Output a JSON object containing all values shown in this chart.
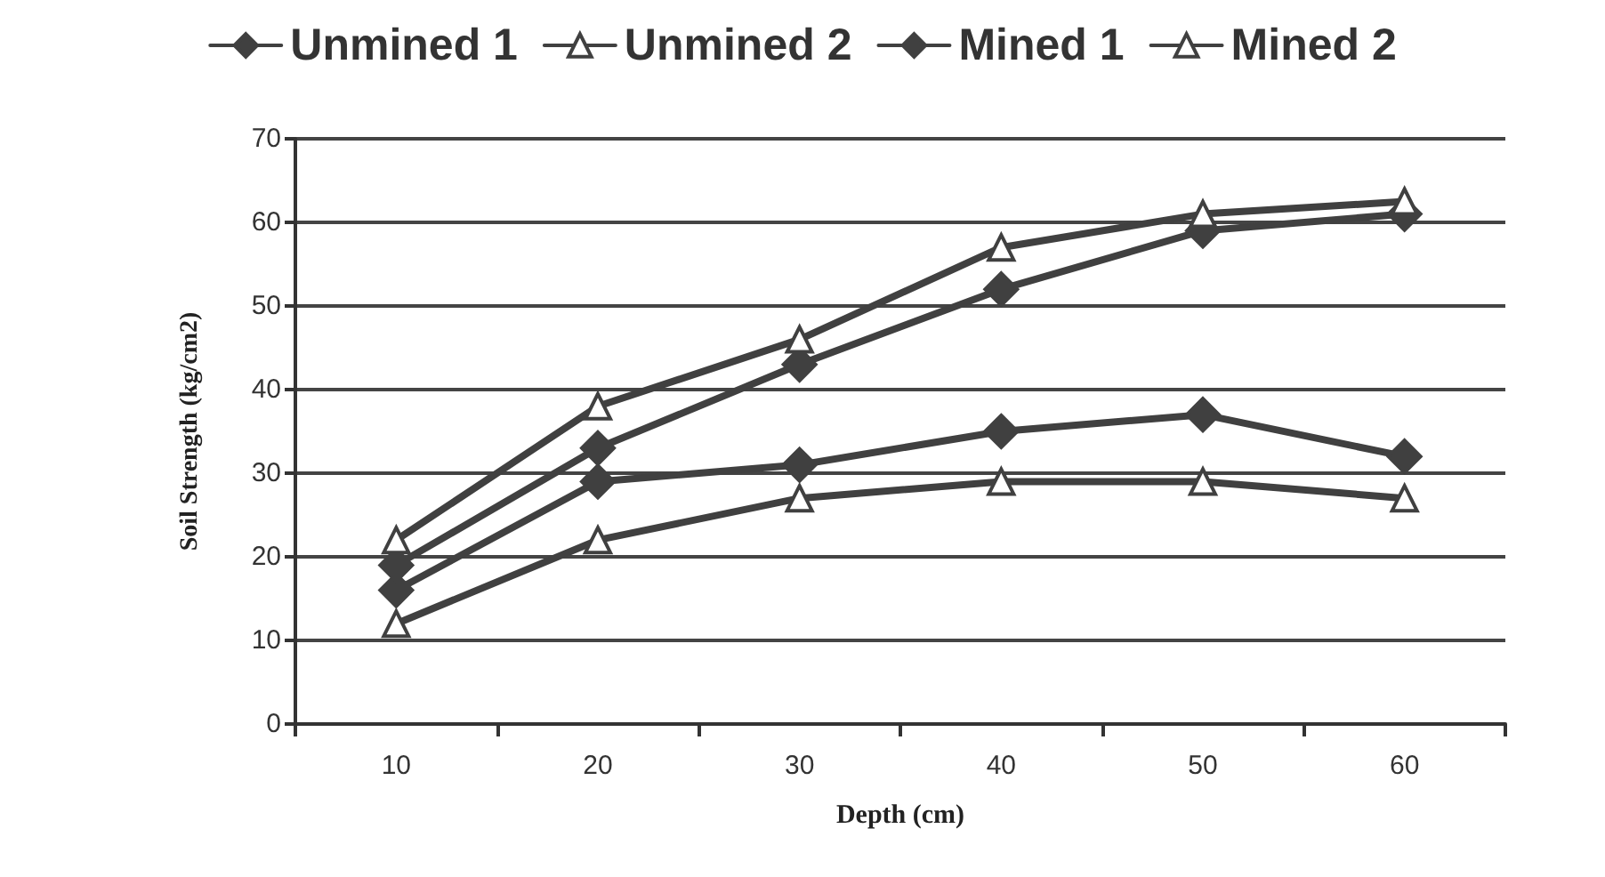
{
  "chart_data": {
    "type": "line",
    "xlabel": "Depth (cm)",
    "ylabel": "Soil Strength (kg/cm2)",
    "categories": [
      "10",
      "20",
      "30",
      "40",
      "50",
      "60"
    ],
    "series": [
      {
        "name": "Unmined 1",
        "color": "#404040",
        "marker": "diamond",
        "values": [
          16,
          29,
          31,
          35,
          37,
          32
        ]
      },
      {
        "name": "Unmined 2",
        "color": "#404040",
        "marker": "triangle",
        "values": [
          12,
          22,
          27,
          29,
          29,
          27
        ]
      },
      {
        "name": "Mined 1",
        "color": "#404040",
        "marker": "diamond",
        "values": [
          19,
          33,
          43,
          52,
          59,
          61
        ]
      },
      {
        "name": "Mined 2",
        "color": "#404040",
        "marker": "triangle",
        "values": [
          22,
          38,
          46,
          57,
          61,
          62.5
        ]
      }
    ],
    "ylim": [
      0,
      70
    ],
    "yticks": [
      0,
      10,
      20,
      30,
      40,
      50,
      60,
      70
    ],
    "grid": "y",
    "legend": "top",
    "line_style": "solid"
  }
}
